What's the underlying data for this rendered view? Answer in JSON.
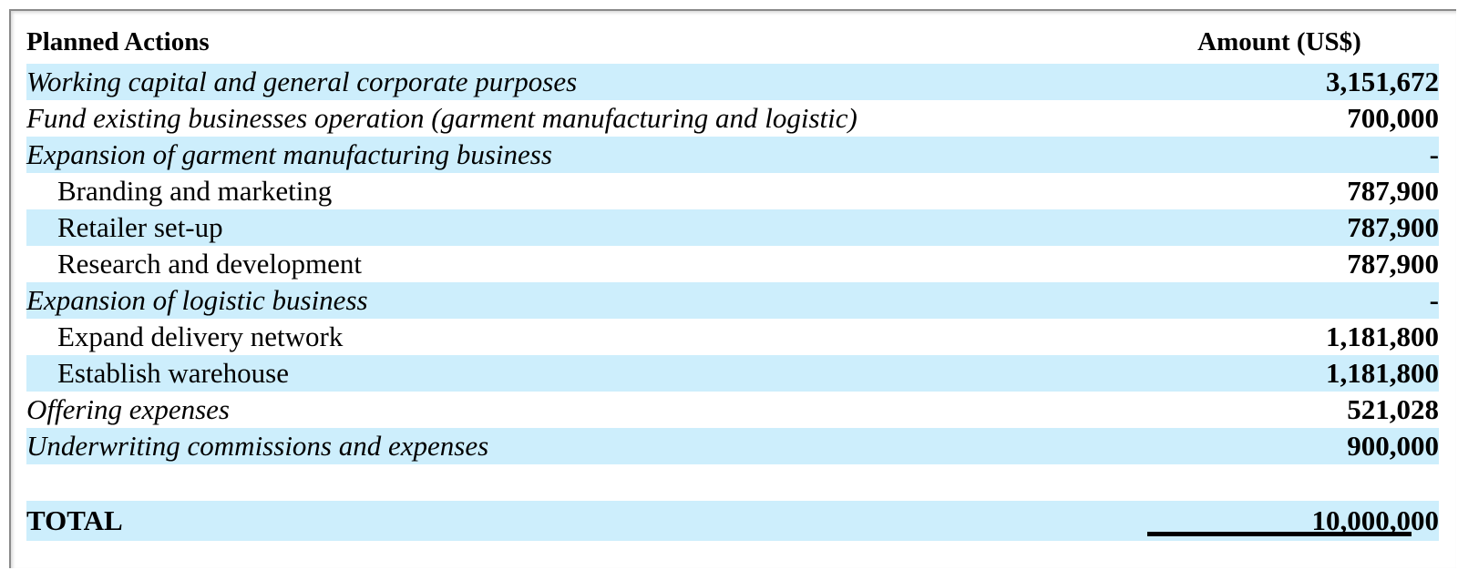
{
  "table": {
    "headers": {
      "action": "Planned Actions",
      "amount": "Amount (US$)"
    },
    "rows": [
      {
        "label": "Working capital and general corporate purposes",
        "amount": "3,151,672"
      },
      {
        "label": "Fund existing businesses operation (garment manufacturing and logistic)",
        "amount": "700,000"
      },
      {
        "label": "Expansion of garment manufacturing business",
        "amount": "-"
      },
      {
        "label": "Branding and marketing",
        "amount": "787,900"
      },
      {
        "label": "Retailer set-up",
        "amount": "787,900"
      },
      {
        "label": "Research and development",
        "amount": "787,900"
      },
      {
        "label": "Expansion of logistic business",
        "amount": "-"
      },
      {
        "label": "Expand delivery network",
        "amount": "1,181,800"
      },
      {
        "label": "Establish warehouse",
        "amount": "1,181,800"
      },
      {
        "label": "Offering expenses",
        "amount": "521,028"
      },
      {
        "label": "Underwriting commissions and expenses",
        "amount": "900,000"
      }
    ],
    "total": {
      "label": "TOTAL",
      "amount": "10,000,000"
    }
  }
}
